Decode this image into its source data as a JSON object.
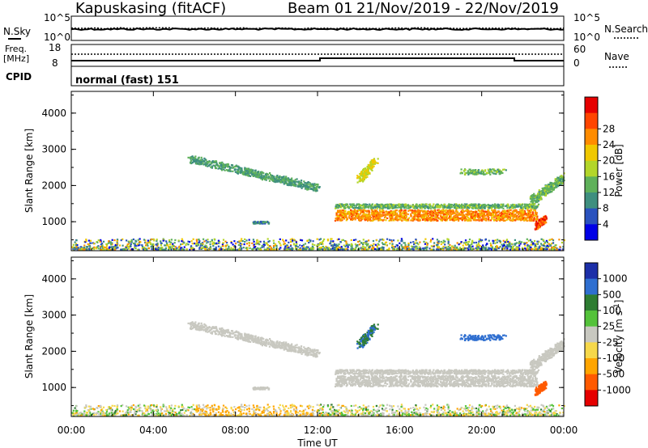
{
  "header": {
    "site": "Kapuskasing (fitACF)",
    "beam": "Beam 01",
    "date_range": "21/Nov/2019 - 22/Nov/2019"
  },
  "noise_panel": {
    "left_label": "N.Sky",
    "left_ticks": [
      "10^5",
      "10^0"
    ],
    "right_label": "N.Search",
    "right_ticks": [
      "10^5",
      "10^0"
    ]
  },
  "freq_panel": {
    "left_label_1": "Freq.",
    "left_label_2": "[MHz]",
    "left_ticks": [
      "18",
      "8"
    ],
    "right_label": "Nave",
    "right_ticks": [
      "60",
      "0"
    ]
  },
  "cpid_panel": {
    "label": "CPID",
    "value": "normal (fast) 151"
  },
  "chart_data": [
    {
      "type": "heatmap",
      "name": "power",
      "ylabel": "Slant Range [km]",
      "xlabel": "Time UT",
      "x_ticks": [
        "00:00",
        "04:00",
        "08:00",
        "12:00",
        "16:00",
        "20:00",
        "00:00"
      ],
      "y_ticks": [
        "1000",
        "2000",
        "3000",
        "4000"
      ],
      "ylim": [
        200,
        4600
      ],
      "colorbar_label": "Power [dB]",
      "colorbar_ticks": [
        "4",
        "8",
        "12",
        "16",
        "20",
        "24",
        "28"
      ],
      "colorbar_colors": [
        "#0000e6",
        "#2a52be",
        "#3f8f7f",
        "#5fb15a",
        "#b3d62a",
        "#f0c800",
        "#ff8c00",
        "#ff4500",
        "#e60000"
      ],
      "features": [
        {
          "t0": 5.8,
          "t1": 12.0,
          "r0": 2900,
          "r1": 1800,
          "power": 10
        },
        {
          "t0": 12.8,
          "t1": 22.8,
          "r0": 1100,
          "r1": 1500,
          "power": 24
        },
        {
          "t0": 22.4,
          "t1": 24.0,
          "r0": 1700,
          "r1": 2300,
          "power": 12
        },
        {
          "t0": 22.6,
          "t1": 23.0,
          "r0": 850,
          "r1": 1100,
          "power": 28
        }
      ]
    },
    {
      "type": "heatmap",
      "name": "velocity",
      "ylabel": "Slant Range [km]",
      "xlabel": "Time UT",
      "x_ticks": [
        "00:00",
        "04:00",
        "08:00",
        "12:00",
        "16:00",
        "20:00",
        "00:00"
      ],
      "y_ticks": [
        "1000",
        "2000",
        "3000",
        "4000"
      ],
      "ylim": [
        200,
        4600
      ],
      "colorbar_label": "Velocity [m s^-1]",
      "colorbar_ticks": [
        "1000",
        "500",
        "100",
        "25",
        "-25",
        "-100",
        "-500",
        "-1000"
      ],
      "colorbar_colors": [
        "#1c2fa8",
        "#2f6fd0",
        "#2e7d32",
        "#54c23a",
        "#c8c8c0",
        "#f6d84a",
        "#ffa500",
        "#ff5a00",
        "#e60000"
      ],
      "features": [
        {
          "t0": 5.8,
          "t1": 12.0,
          "r0": 2700,
          "r1": 1900,
          "velocity": 0
        },
        {
          "t0": 12.8,
          "t1": 22.8,
          "r0": 1200,
          "r1": 1500,
          "velocity": 0
        },
        {
          "t0": 22.5,
          "t1": 23.1,
          "r0": 900,
          "r1": 1200,
          "velocity": -500
        }
      ]
    }
  ]
}
